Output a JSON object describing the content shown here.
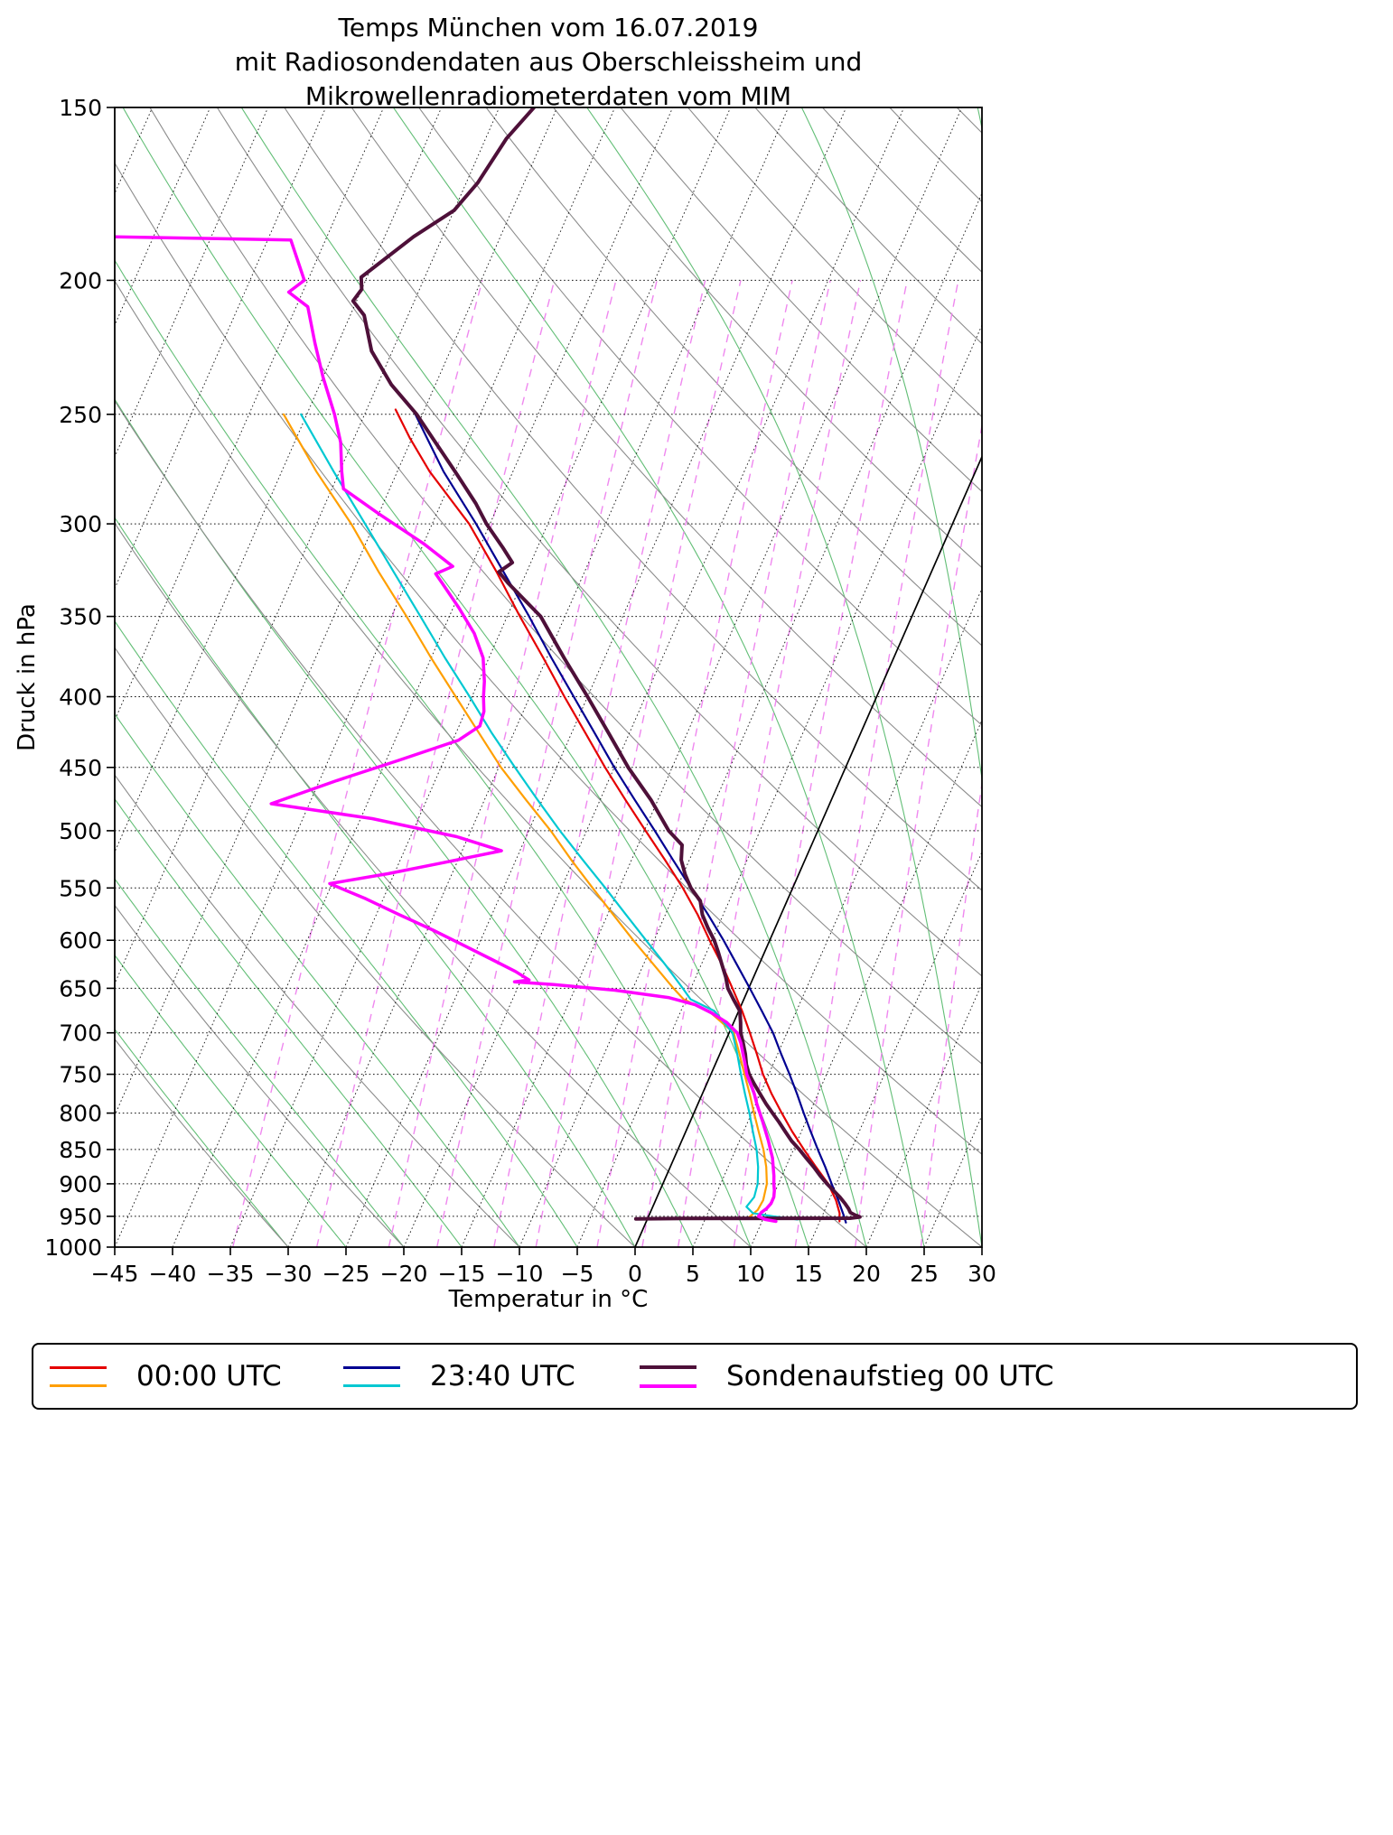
{
  "title": {
    "line1": "Temps München vom 16.07.2019",
    "line2": "mit Radiosondendaten aus Oberschleissheim und",
    "line3": "Mikrowellenradiometerdaten vom MIM"
  },
  "chart_data": {
    "type": "line",
    "variant": "skew-t-log-p",
    "title": "Temps München vom 16.07.2019 mit Radiosondendaten aus Oberschleissheim und Mikrowellenradiometerdaten vom MIM",
    "xlabel": "Temperatur in °C",
    "ylabel": "Druck in hPa",
    "xlim": [
      -45,
      30
    ],
    "plim": [
      1000,
      150
    ],
    "skew": 22.8,
    "x_tick_values": [
      -45,
      -40,
      -35,
      -30,
      -25,
      -20,
      -15,
      -10,
      -5,
      0,
      5,
      10,
      15,
      20,
      25,
      30
    ],
    "x_tick_labels": [
      "−45",
      "−40",
      "−35",
      "−30",
      "−25",
      "−20",
      "−15",
      "−10",
      "−5",
      "0",
      "5",
      "10",
      "15",
      "20",
      "25",
      "30"
    ],
    "y_ticks": [
      150,
      200,
      250,
      300,
      350,
      400,
      450,
      500,
      550,
      600,
      650,
      700,
      750,
      800,
      850,
      900,
      950,
      1000
    ],
    "grid": {
      "isotherm_range_c": [
        -90,
        30
      ],
      "isotherm_step_c": 5,
      "zero_isotherm_solid": true,
      "dry_adiabats_c": [
        -30,
        -20,
        -10,
        0,
        10,
        20,
        30,
        40,
        50,
        60,
        70,
        80,
        90,
        100,
        110,
        120,
        130,
        140,
        150,
        160,
        170
      ],
      "moist_adiabats_c": [
        -30,
        -25,
        -20,
        -15,
        -10,
        -5,
        0,
        5,
        10,
        15,
        20,
        25,
        30,
        35,
        40
      ],
      "mixing_ratio_g_kg": [
        0.2,
        0.4,
        0.7,
        1,
        1.5,
        2,
        3,
        4,
        5,
        7,
        10,
        14,
        20,
        28
      ],
      "mixing_ratio_top_hpa": 200
    },
    "series": [
      {
        "id": "t_00utc",
        "color": "#e50000",
        "width": 2.2,
        "points": [
          [
            248,
            -52.5
          ],
          [
            260,
            -50.2
          ],
          [
            275,
            -47.2
          ],
          [
            300,
            -41.8
          ],
          [
            325,
            -37.6
          ],
          [
            350,
            -33.9
          ],
          [
            375,
            -30.3
          ],
          [
            400,
            -27.0
          ],
          [
            425,
            -23.8
          ],
          [
            450,
            -20.8
          ],
          [
            475,
            -17.8
          ],
          [
            500,
            -14.9
          ],
          [
            525,
            -12.1
          ],
          [
            550,
            -9.5
          ],
          [
            575,
            -7.2
          ],
          [
            600,
            -5.2
          ],
          [
            625,
            -3.2
          ],
          [
            650,
            -1.4
          ],
          [
            675,
            0.3
          ],
          [
            700,
            1.8
          ],
          [
            725,
            3.2
          ],
          [
            750,
            4.5
          ],
          [
            775,
            6.0
          ],
          [
            800,
            7.6
          ],
          [
            825,
            9.2
          ],
          [
            850,
            10.9
          ],
          [
            875,
            12.6
          ],
          [
            900,
            14.3
          ],
          [
            925,
            15.6
          ],
          [
            945,
            16.4
          ],
          [
            958,
            16.7
          ]
        ]
      },
      {
        "id": "td_00utc",
        "color": "#ff9f00",
        "width": 2.2,
        "points": [
          [
            250,
            -62.0
          ],
          [
            275,
            -57.0
          ],
          [
            300,
            -52.0
          ],
          [
            325,
            -47.8
          ],
          [
            350,
            -43.7
          ],
          [
            375,
            -40.0
          ],
          [
            400,
            -36.4
          ],
          [
            425,
            -33.0
          ],
          [
            450,
            -29.8
          ],
          [
            475,
            -26.4
          ],
          [
            500,
            -23.1
          ],
          [
            525,
            -20.2
          ],
          [
            550,
            -17.3
          ],
          [
            575,
            -14.5
          ],
          [
            600,
            -11.8
          ],
          [
            625,
            -9.1
          ],
          [
            650,
            -6.5
          ],
          [
            662,
            -5.2
          ],
          [
            675,
            -2.6
          ],
          [
            700,
            0.4
          ],
          [
            725,
            1.7
          ],
          [
            750,
            2.9
          ],
          [
            775,
            4.1
          ],
          [
            800,
            5.2
          ],
          [
            825,
            6.3
          ],
          [
            850,
            7.4
          ],
          [
            875,
            8.3
          ],
          [
            900,
            9.0
          ],
          [
            925,
            9.3
          ],
          [
            940,
            9.2
          ],
          [
            952,
            8.7
          ]
        ]
      },
      {
        "id": "t_2340utc",
        "color": "#000091",
        "width": 2.2,
        "points": [
          [
            248,
            -51.0
          ],
          [
            275,
            -46.0
          ],
          [
            300,
            -41.2
          ],
          [
            325,
            -37.0
          ],
          [
            350,
            -33.1
          ],
          [
            375,
            -29.6
          ],
          [
            400,
            -26.2
          ],
          [
            425,
            -23.0
          ],
          [
            450,
            -20.0
          ],
          [
            475,
            -17.0
          ],
          [
            500,
            -14.1
          ],
          [
            525,
            -11.4
          ],
          [
            550,
            -8.8
          ],
          [
            575,
            -6.3
          ],
          [
            600,
            -4.0
          ],
          [
            625,
            -1.9
          ],
          [
            650,
            0.1
          ],
          [
            675,
            2.0
          ],
          [
            700,
            3.8
          ],
          [
            725,
            5.3
          ],
          [
            750,
            6.8
          ],
          [
            775,
            8.2
          ],
          [
            800,
            9.5
          ],
          [
            825,
            10.8
          ],
          [
            850,
            12.1
          ],
          [
            875,
            13.4
          ],
          [
            900,
            14.6
          ],
          [
            925,
            15.8
          ],
          [
            950,
            16.9
          ],
          [
            960,
            17.3
          ]
        ]
      },
      {
        "id": "td_2340utc",
        "color": "#00c8d2",
        "width": 2.2,
        "points": [
          [
            250,
            -60.5
          ],
          [
            275,
            -55.5
          ],
          [
            300,
            -50.8
          ],
          [
            325,
            -46.5
          ],
          [
            350,
            -42.5
          ],
          [
            375,
            -38.8
          ],
          [
            400,
            -35.2
          ],
          [
            425,
            -31.9
          ],
          [
            450,
            -28.6
          ],
          [
            475,
            -25.4
          ],
          [
            500,
            -22.3
          ],
          [
            525,
            -19.2
          ],
          [
            550,
            -16.2
          ],
          [
            575,
            -13.4
          ],
          [
            600,
            -10.7
          ],
          [
            625,
            -8.1
          ],
          [
            650,
            -5.7
          ],
          [
            662,
            -4.6
          ],
          [
            675,
            -2.1
          ],
          [
            700,
            0.3
          ],
          [
            725,
            1.5
          ],
          [
            750,
            2.6
          ],
          [
            775,
            3.7
          ],
          [
            800,
            4.8
          ],
          [
            825,
            5.8
          ],
          [
            850,
            6.8
          ],
          [
            875,
            7.6
          ],
          [
            900,
            8.2
          ],
          [
            920,
            8.4
          ],
          [
            935,
            8.1
          ],
          [
            945,
            8.9
          ],
          [
            950,
            10.8
          ],
          [
            955,
            13.0
          ]
        ]
      },
      {
        "id": "t_sonde",
        "color": "#4e1039",
        "width": 4,
        "points": [
          [
            150,
            -52.0
          ],
          [
            158,
            -53.2
          ],
          [
            170,
            -54.0
          ],
          [
            178,
            -55.0
          ],
          [
            186,
            -57.5
          ],
          [
            199,
            -60.5
          ],
          [
            203,
            -60.0
          ],
          [
            207,
            -60.3
          ],
          [
            212,
            -58.8
          ],
          [
            225,
            -56.8
          ],
          [
            238,
            -53.8
          ],
          [
            250,
            -50.5
          ],
          [
            262,
            -47.8
          ],
          [
            275,
            -45.0
          ],
          [
            290,
            -42.0
          ],
          [
            300,
            -40.3
          ],
          [
            312,
            -38.0
          ],
          [
            320,
            -36.6
          ],
          [
            325,
            -37.4
          ],
          [
            331,
            -36.2
          ],
          [
            350,
            -32.1
          ],
          [
            375,
            -28.5
          ],
          [
            400,
            -25.0
          ],
          [
            425,
            -21.8
          ],
          [
            450,
            -18.8
          ],
          [
            475,
            -15.6
          ],
          [
            500,
            -12.9
          ],
          [
            512,
            -11.2
          ],
          [
            525,
            -10.7
          ],
          [
            538,
            -9.8
          ],
          [
            550,
            -8.8
          ],
          [
            562,
            -7.5
          ],
          [
            575,
            -6.8
          ],
          [
            588,
            -5.8
          ],
          [
            600,
            -4.8
          ],
          [
            612,
            -4.0
          ],
          [
            625,
            -3.2
          ],
          [
            638,
            -2.4
          ],
          [
            650,
            -1.8
          ],
          [
            662,
            -0.9
          ],
          [
            675,
            0.1
          ],
          [
            688,
            0.6
          ],
          [
            700,
            1.0
          ],
          [
            712,
            1.6
          ],
          [
            725,
            2.2
          ],
          [
            738,
            2.7
          ],
          [
            750,
            3.3
          ],
          [
            762,
            4.1
          ],
          [
            775,
            5.0
          ],
          [
            788,
            5.9
          ],
          [
            800,
            6.8
          ],
          [
            812,
            7.7
          ],
          [
            825,
            8.6
          ],
          [
            838,
            9.5
          ],
          [
            850,
            10.5
          ],
          [
            862,
            11.4
          ],
          [
            875,
            12.4
          ],
          [
            888,
            13.3
          ],
          [
            900,
            14.2
          ],
          [
            910,
            15.0
          ],
          [
            920,
            15.8
          ],
          [
            930,
            16.5
          ],
          [
            938,
            17.0
          ],
          [
            944,
            17.3
          ],
          [
            948,
            17.8
          ],
          [
            951,
            18.3
          ],
          [
            953,
            17.5
          ],
          [
            953.5,
            3.0
          ],
          [
            954,
            -1.0
          ]
        ]
      },
      {
        "id": "td_sonde",
        "color": "#ff00ff",
        "width": 3.5,
        "points": [
          [
            186,
            -84.0
          ],
          [
            187,
            -68.0
          ],
          [
            200,
            -65.3
          ],
          [
            204,
            -66.2
          ],
          [
            209,
            -64.0
          ],
          [
            222,
            -62.0
          ],
          [
            235,
            -60.0
          ],
          [
            250,
            -57.6
          ],
          [
            262,
            -56.0
          ],
          [
            275,
            -54.8
          ],
          [
            283,
            -54.0
          ],
          [
            295,
            -50.0
          ],
          [
            310,
            -45.0
          ],
          [
            322,
            -41.6
          ],
          [
            326,
            -42.8
          ],
          [
            331,
            -41.9
          ],
          [
            345,
            -39.5
          ],
          [
            360,
            -37.2
          ],
          [
            375,
            -35.5
          ],
          [
            390,
            -34.5
          ],
          [
            400,
            -34.0
          ],
          [
            410,
            -33.4
          ],
          [
            420,
            -33.2
          ],
          [
            430,
            -34.5
          ],
          [
            445,
            -39.0
          ],
          [
            460,
            -43.5
          ],
          [
            478,
            -48.3
          ],
          [
            490,
            -39.0
          ],
          [
            505,
            -31.0
          ],
          [
            517,
            -26.6
          ],
          [
            528,
            -31.5
          ],
          [
            537,
            -35.5
          ],
          [
            546,
            -40.2
          ],
          [
            560,
            -36.5
          ],
          [
            575,
            -33.0
          ],
          [
            590,
            -29.5
          ],
          [
            605,
            -26.3
          ],
          [
            620,
            -23.2
          ],
          [
            632,
            -20.8
          ],
          [
            641,
            -19.3
          ],
          [
            643,
            -20.5
          ],
          [
            646,
            -17.0
          ],
          [
            652,
            -11.5
          ],
          [
            660,
            -6.6
          ],
          [
            668,
            -4.0
          ],
          [
            677,
            -2.3
          ],
          [
            688,
            -0.6
          ],
          [
            700,
            0.7
          ],
          [
            712,
            1.4
          ],
          [
            725,
            2.0
          ],
          [
            738,
            2.6
          ],
          [
            750,
            3.1
          ],
          [
            762,
            3.8
          ],
          [
            775,
            4.5
          ],
          [
            788,
            5.1
          ],
          [
            800,
            5.7
          ],
          [
            812,
            6.3
          ],
          [
            825,
            6.9
          ],
          [
            838,
            7.5
          ],
          [
            850,
            8.0
          ],
          [
            862,
            8.5
          ],
          [
            875,
            8.9
          ],
          [
            888,
            9.3
          ],
          [
            900,
            9.6
          ],
          [
            910,
            9.9
          ],
          [
            920,
            10.1
          ],
          [
            930,
            10.1
          ],
          [
            938,
            9.9
          ],
          [
            944,
            9.6
          ],
          [
            950,
            9.5
          ],
          [
            955,
            10.2
          ],
          [
            958,
            11.2
          ]
        ]
      }
    ],
    "legend": {
      "entries": [
        {
          "label": "00:00 UTC",
          "colors": [
            "#e50000",
            "#ff9f00"
          ]
        },
        {
          "label": "23:40 UTC",
          "colors": [
            "#000091",
            "#00c8d2"
          ]
        },
        {
          "label": "Sondenaufstieg 00 UTC",
          "colors": [
            "#4e1039",
            "#ff00ff"
          ]
        }
      ]
    }
  },
  "style": {
    "moist_adiabat_green": "#46b35e",
    "dry_adiabat_gray": "#8c8c8c",
    "mixing_ratio_violet": "#ee82ee",
    "isotherm_black": "#111111",
    "frame_black": "#000000"
  }
}
